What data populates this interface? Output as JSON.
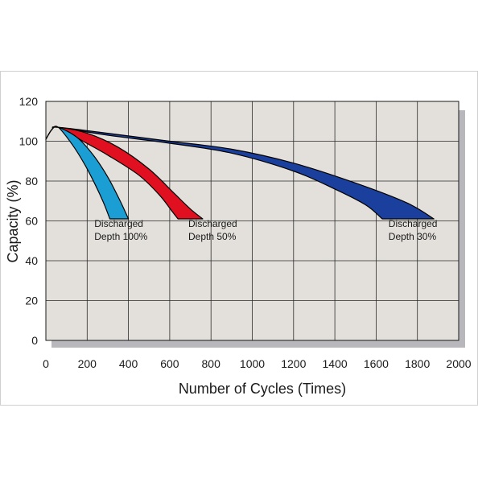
{
  "chart_data": {
    "type": "area",
    "xlabel": "Number of Cycles (Times)",
    "ylabel": "Capacity (%)",
    "xlim": [
      0,
      2000
    ],
    "ylim": [
      0,
      120
    ],
    "x_ticks": [
      0,
      200,
      400,
      600,
      800,
      1000,
      1200,
      1400,
      1600,
      1800,
      2000
    ],
    "y_ticks": [
      0,
      20,
      40,
      60,
      80,
      100,
      120
    ],
    "grid": true,
    "legend": "none",
    "plot_background": "#e3e0db",
    "series": [
      {
        "key": "dod30",
        "label_line1": "Discharged",
        "label_line2": "Depth 30%",
        "color": "#1a3f9c",
        "upper": [
          [
            0,
            101
          ],
          [
            30,
            106
          ],
          [
            60,
            107
          ],
          [
            300,
            104
          ],
          [
            600,
            100
          ],
          [
            900,
            96
          ],
          [
            1200,
            89
          ],
          [
            1500,
            79
          ],
          [
            1750,
            69
          ],
          [
            1880,
            61
          ]
        ],
        "lower": [
          [
            0,
            101
          ],
          [
            30,
            106
          ],
          [
            60,
            107
          ],
          [
            300,
            103
          ],
          [
            600,
            99
          ],
          [
            900,
            94
          ],
          [
            1200,
            85
          ],
          [
            1400,
            76
          ],
          [
            1550,
            68
          ],
          [
            1630,
            61
          ]
        ],
        "label_x": 1660,
        "label_y": 57
      },
      {
        "key": "dod50",
        "label_line1": "Discharged",
        "label_line2": "Depth 50%",
        "color": "#e01020",
        "upper": [
          [
            0,
            101
          ],
          [
            30,
            106
          ],
          [
            60,
            107
          ],
          [
            200,
            104
          ],
          [
            350,
            97
          ],
          [
            500,
            86
          ],
          [
            620,
            74
          ],
          [
            700,
            66
          ],
          [
            760,
            61
          ]
        ],
        "lower": [
          [
            0,
            101
          ],
          [
            30,
            106
          ],
          [
            60,
            107
          ],
          [
            180,
            100
          ],
          [
            300,
            93
          ],
          [
            450,
            83
          ],
          [
            550,
            73
          ],
          [
            610,
            65
          ],
          [
            640,
            61
          ]
        ],
        "label_x": 690,
        "label_y": 57
      },
      {
        "key": "dod100",
        "label_line1": "Discharged",
        "label_line2": "Depth 100%",
        "color": "#1b9ed3",
        "upper": [
          [
            0,
            101
          ],
          [
            30,
            106
          ],
          [
            60,
            107
          ],
          [
            150,
            102
          ],
          [
            230,
            93
          ],
          [
            300,
            82
          ],
          [
            360,
            70
          ],
          [
            400,
            61
          ]
        ],
        "lower": [
          [
            0,
            101
          ],
          [
            30,
            106
          ],
          [
            60,
            107
          ],
          [
            130,
            98
          ],
          [
            190,
            88
          ],
          [
            240,
            78
          ],
          [
            280,
            69
          ],
          [
            310,
            61
          ]
        ],
        "label_x": 235,
        "label_y": 57
      }
    ]
  }
}
